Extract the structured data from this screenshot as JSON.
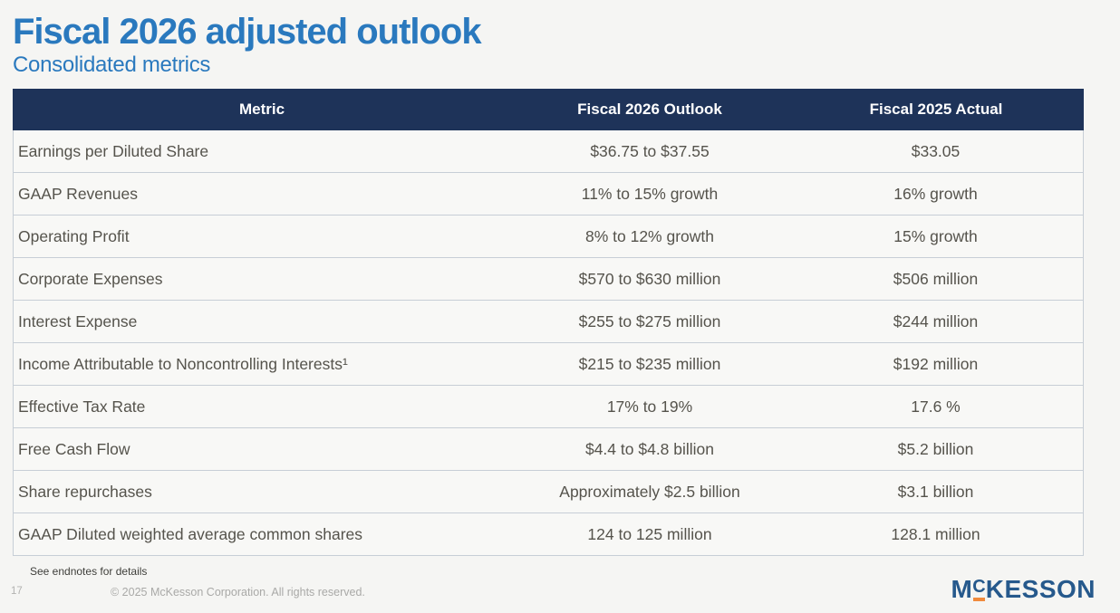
{
  "slide": {
    "title": "Fiscal 2026 adjusted outlook",
    "subtitle": "Consolidated metrics"
  },
  "table": {
    "columns": [
      "Metric",
      "Fiscal 2026 Outlook",
      "Fiscal 2025 Actual"
    ],
    "rows": [
      [
        "Earnings per Diluted Share",
        "$36.75 to $37.55",
        "$33.05"
      ],
      [
        "GAAP Revenues",
        "11% to 15% growth",
        "16% growth"
      ],
      [
        "Operating Profit",
        "8% to 12% growth",
        "15% growth"
      ],
      [
        "Corporate Expenses",
        "$570 to $630 million",
        "$506 million"
      ],
      [
        "Interest Expense",
        "$255 to $275 million",
        "$244 million"
      ],
      [
        "Income Attributable to Noncontrolling Interests¹",
        "$215 to $235 million",
        "$192 million"
      ],
      [
        "Effective Tax Rate",
        "17% to 19%",
        "17.6 %"
      ],
      [
        "Free Cash Flow",
        "$4.4 to $4.8 billion",
        "$5.2 billion"
      ],
      [
        "Share repurchases",
        "Approximately $2.5 billion",
        "$3.1 billion"
      ],
      [
        "GAAP Diluted weighted average common shares",
        "124 to 125 million",
        "128.1 million"
      ]
    ]
  },
  "footer": {
    "endnote": "See endnotes for details",
    "page_number": "17",
    "copyright": "© 2025 McKesson Corporation. All rights reserved.",
    "logo": {
      "m": "M",
      "c": "C",
      "rest": "KESSON"
    }
  },
  "colors": {
    "accent_blue": "#2a79be",
    "header_navy": "#1e3359",
    "logo_blue": "#26598c",
    "logo_orange": "#f08a3c"
  }
}
